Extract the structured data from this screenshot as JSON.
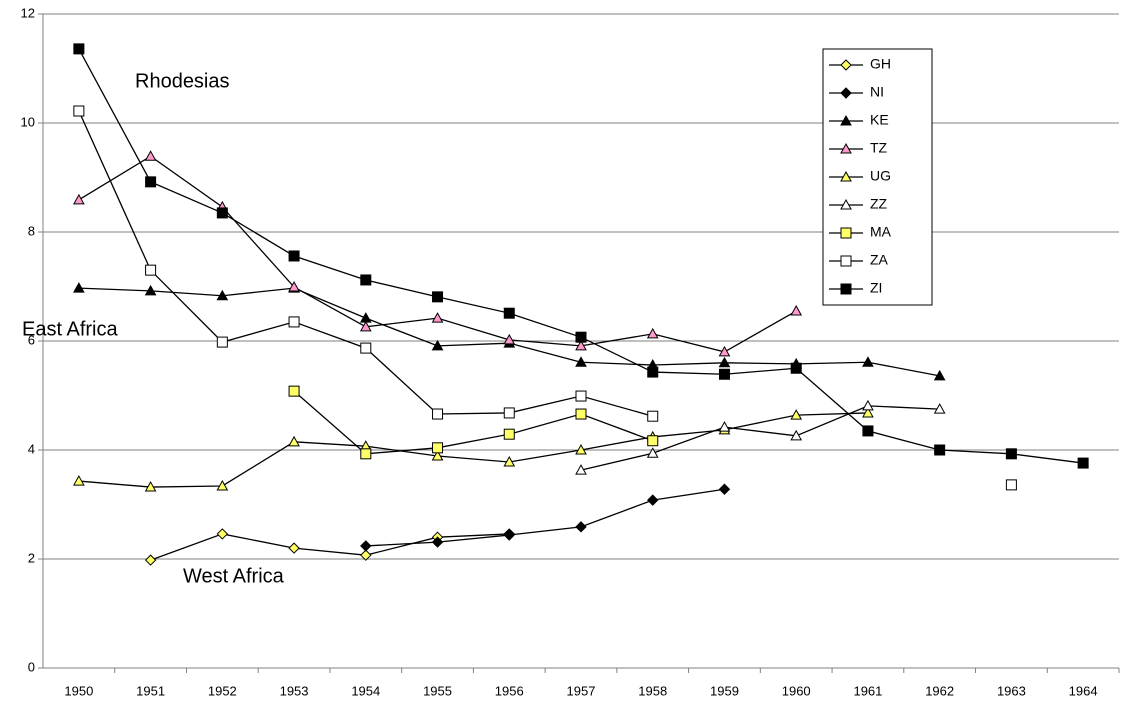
{
  "chart_data": {
    "type": "line",
    "categories": [
      "1950",
      "1951",
      "1952",
      "1953",
      "1954",
      "1955",
      "1956",
      "1957",
      "1958",
      "1959",
      "1960",
      "1961",
      "1962",
      "1963",
      "1964"
    ],
    "annotations": [
      "Rhodesias",
      "East Africa",
      "West Africa"
    ],
    "ylim": [
      0,
      12
    ],
    "yticks": [
      0,
      2,
      4,
      6,
      8,
      10,
      12
    ],
    "grid": true,
    "legend": "upper right",
    "line_color": "#000000",
    "series": [
      {
        "name": "GH",
        "marker": "diamond",
        "color": "#ffff66",
        "values": [
          null,
          1.98,
          2.46,
          2.2,
          2.07,
          2.4,
          2.46,
          null,
          null,
          null,
          null,
          null,
          null,
          null,
          null
        ]
      },
      {
        "name": "NI",
        "marker": "diamond",
        "color": "#000000",
        "values": [
          null,
          null,
          null,
          null,
          2.24,
          2.31,
          2.44,
          2.59,
          3.08,
          3.28,
          null,
          null,
          null,
          null,
          null
        ]
      },
      {
        "name": "KE",
        "marker": "triangle",
        "color": "#000000",
        "values": [
          6.97,
          6.92,
          6.83,
          6.97,
          6.42,
          5.91,
          5.96,
          5.61,
          5.56,
          5.6,
          5.58,
          5.61,
          5.36,
          null,
          null
        ]
      },
      {
        "name": "TZ",
        "marker": "triangle",
        "color": "#ff99cc",
        "values": [
          8.59,
          9.39,
          8.46,
          6.99,
          6.26,
          6.42,
          6.02,
          5.91,
          6.13,
          5.8,
          6.55,
          null,
          null,
          null,
          null
        ]
      },
      {
        "name": "UG",
        "marker": "triangle",
        "color": "#ffff66",
        "values": [
          3.43,
          3.32,
          3.34,
          4.15,
          4.07,
          3.89,
          3.78,
          4.0,
          4.24,
          4.37,
          4.64,
          4.68,
          null,
          null,
          null
        ]
      },
      {
        "name": "ZZ",
        "marker": "triangle",
        "color": "#ffffff",
        "values": [
          null,
          null,
          null,
          null,
          null,
          null,
          null,
          3.63,
          3.94,
          4.42,
          4.26,
          4.81,
          4.75,
          null,
          null
        ]
      },
      {
        "name": "MA",
        "marker": "square",
        "color": "#ffff66",
        "values": [
          null,
          null,
          null,
          5.08,
          3.93,
          4.04,
          4.29,
          4.66,
          4.17,
          null,
          null,
          null,
          null,
          null,
          null
        ]
      },
      {
        "name": "ZA",
        "marker": "square",
        "color": "#ffffff",
        "values": [
          10.22,
          7.3,
          5.98,
          6.35,
          5.87,
          4.66,
          4.68,
          4.99,
          4.62,
          null,
          null,
          null,
          null,
          3.36,
          null
        ]
      },
      {
        "name": "ZI",
        "marker": "square",
        "color": "#000000",
        "values": [
          11.36,
          8.92,
          8.35,
          7.56,
          7.12,
          6.81,
          6.51,
          6.07,
          5.43,
          5.39,
          5.5,
          4.35,
          4.0,
          3.93,
          3.76
        ]
      }
    ]
  }
}
